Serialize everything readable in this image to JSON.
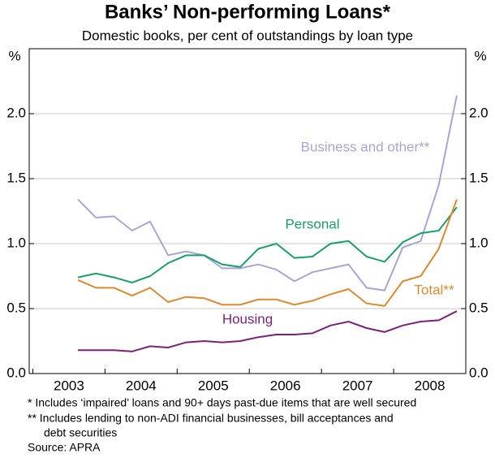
{
  "chart_data": {
    "type": "line",
    "title": "Banks’ Non-performing Loans*",
    "subtitle": "Domestic books, per cent of outstandings by loan type",
    "ylabel": "%",
    "x": [
      2003.625,
      2003.875,
      2004.125,
      2004.375,
      2004.625,
      2004.875,
      2005.125,
      2005.375,
      2005.625,
      2005.875,
      2006.125,
      2006.375,
      2006.625,
      2006.875,
      2007.125,
      2007.375,
      2007.625,
      2007.875,
      2008.125,
      2008.375,
      2008.625,
      2008.875
    ],
    "series": [
      {
        "name": "Business and other**",
        "color": "#a9a5d8",
        "values": [
          1.34,
          1.2,
          1.21,
          1.1,
          1.17,
          0.91,
          0.94,
          0.91,
          0.81,
          0.81,
          0.84,
          0.8,
          0.71,
          0.78,
          0.81,
          0.84,
          0.66,
          0.64,
          0.97,
          1.02,
          1.45,
          2.14
        ]
      },
      {
        "name": "Personal",
        "color": "#16a06a",
        "values": [
          0.74,
          0.77,
          0.74,
          0.7,
          0.75,
          0.85,
          0.91,
          0.91,
          0.84,
          0.82,
          0.96,
          1.0,
          0.89,
          0.9,
          1.0,
          1.02,
          0.9,
          0.86,
          1.01,
          1.08,
          1.1,
          1.28
        ]
      },
      {
        "name": "Total**",
        "color": "#e0892c",
        "values": [
          0.72,
          0.66,
          0.66,
          0.6,
          0.66,
          0.55,
          0.59,
          0.58,
          0.53,
          0.53,
          0.57,
          0.57,
          0.53,
          0.56,
          0.61,
          0.65,
          0.54,
          0.52,
          0.71,
          0.75,
          0.96,
          1.34
        ]
      },
      {
        "name": "Housing",
        "color": "#7b1f7b",
        "values": [
          0.18,
          0.18,
          0.18,
          0.17,
          0.21,
          0.2,
          0.24,
          0.25,
          0.24,
          0.25,
          0.28,
          0.3,
          0.3,
          0.31,
          0.37,
          0.4,
          0.35,
          0.32,
          0.37,
          0.4,
          0.41,
          0.48
        ]
      }
    ],
    "xlim": [
      2002.95,
      2009.0
    ],
    "xticks": [
      2003,
      2004,
      2005,
      2006,
      2007,
      2008
    ],
    "ylim": [
      0,
      2.5
    ],
    "yticks": [
      {
        "value": 0,
        "label": "0.0"
      },
      0.5,
      {
        "value": 1,
        "label": "1.0"
      },
      1.5,
      {
        "value": 2,
        "label": "2.0"
      }
    ],
    "grid": true,
    "notes": [
      "*   Includes ‘impaired’ loans and 90+ days past-due items that are well secured",
      "** Includes lending to non-ADI financial businesses, bill acceptances and",
      "debt securities"
    ],
    "source": "Source: APRA"
  }
}
